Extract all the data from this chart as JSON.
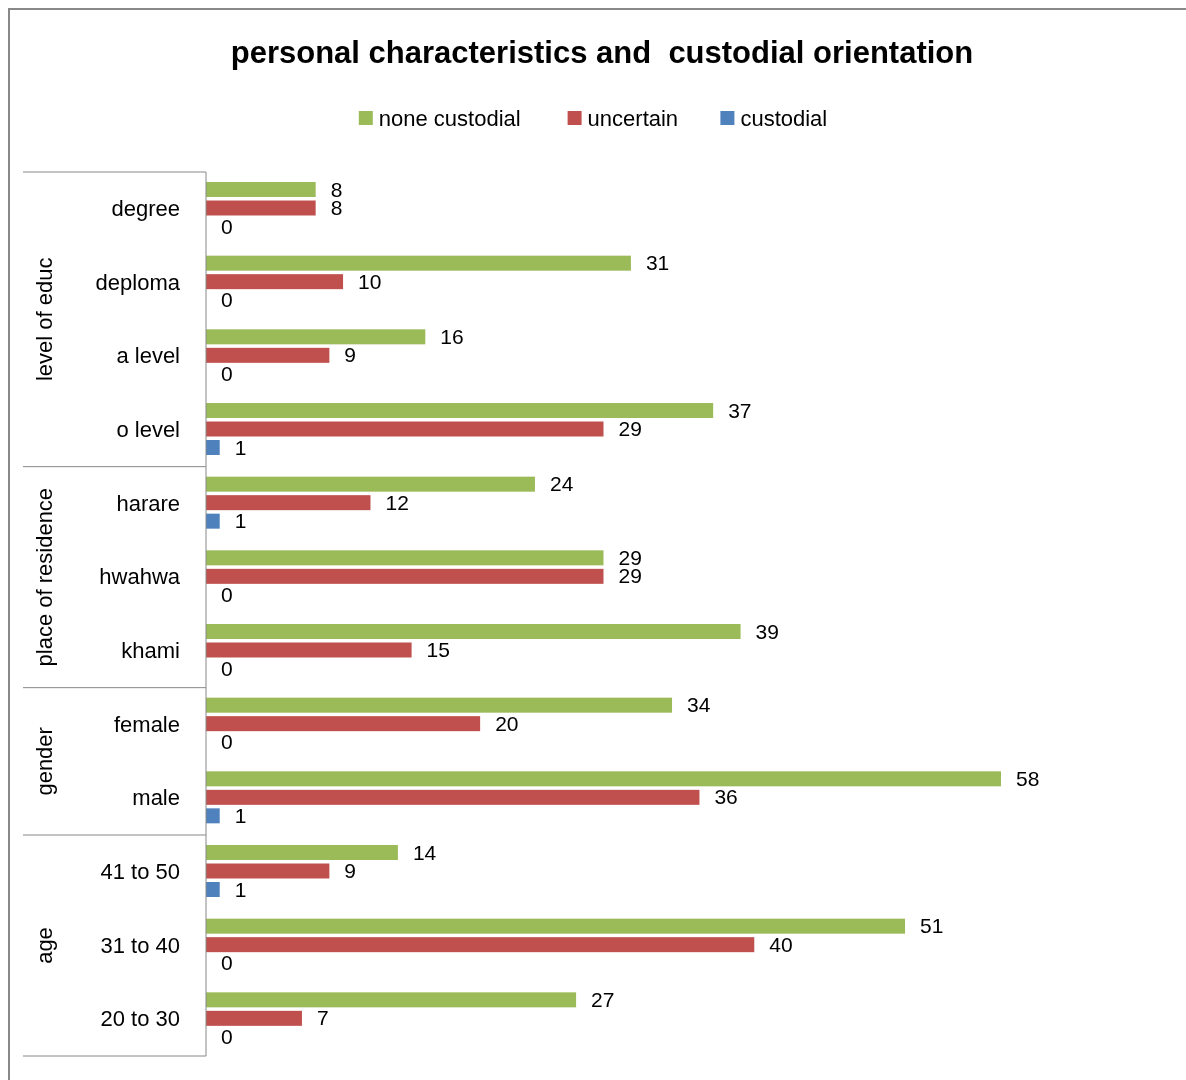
{
  "chart_data": {
    "type": "bar",
    "orientation": "horizontal",
    "title": "personal characteristics and  custodial orientation",
    "categories": [
      "degree",
      "deploma",
      "a level",
      "o level",
      "harare",
      "hwahwa",
      "khami",
      "female",
      "male",
      "41 to 50",
      "31 to 40",
      "20 to 30"
    ],
    "series": [
      {
        "name": "none custodial",
        "color": "#9bbb59",
        "values": [
          8,
          31,
          16,
          37,
          24,
          29,
          39,
          34,
          58,
          14,
          51,
          27
        ]
      },
      {
        "name": "uncertain",
        "color": "#c0504d",
        "values": [
          8,
          10,
          9,
          29,
          12,
          29,
          15,
          20,
          36,
          9,
          40,
          7
        ]
      },
      {
        "name": "custodial",
        "color": "#4f81bd",
        "values": [
          0,
          0,
          0,
          1,
          1,
          0,
          0,
          0,
          1,
          1,
          0,
          0
        ]
      }
    ],
    "data_labels": true,
    "legend": "top",
    "tick_labels": "y",
    "annotations": [
      "level of educ",
      "place of residence",
      "gender",
      "age"
    ]
  }
}
